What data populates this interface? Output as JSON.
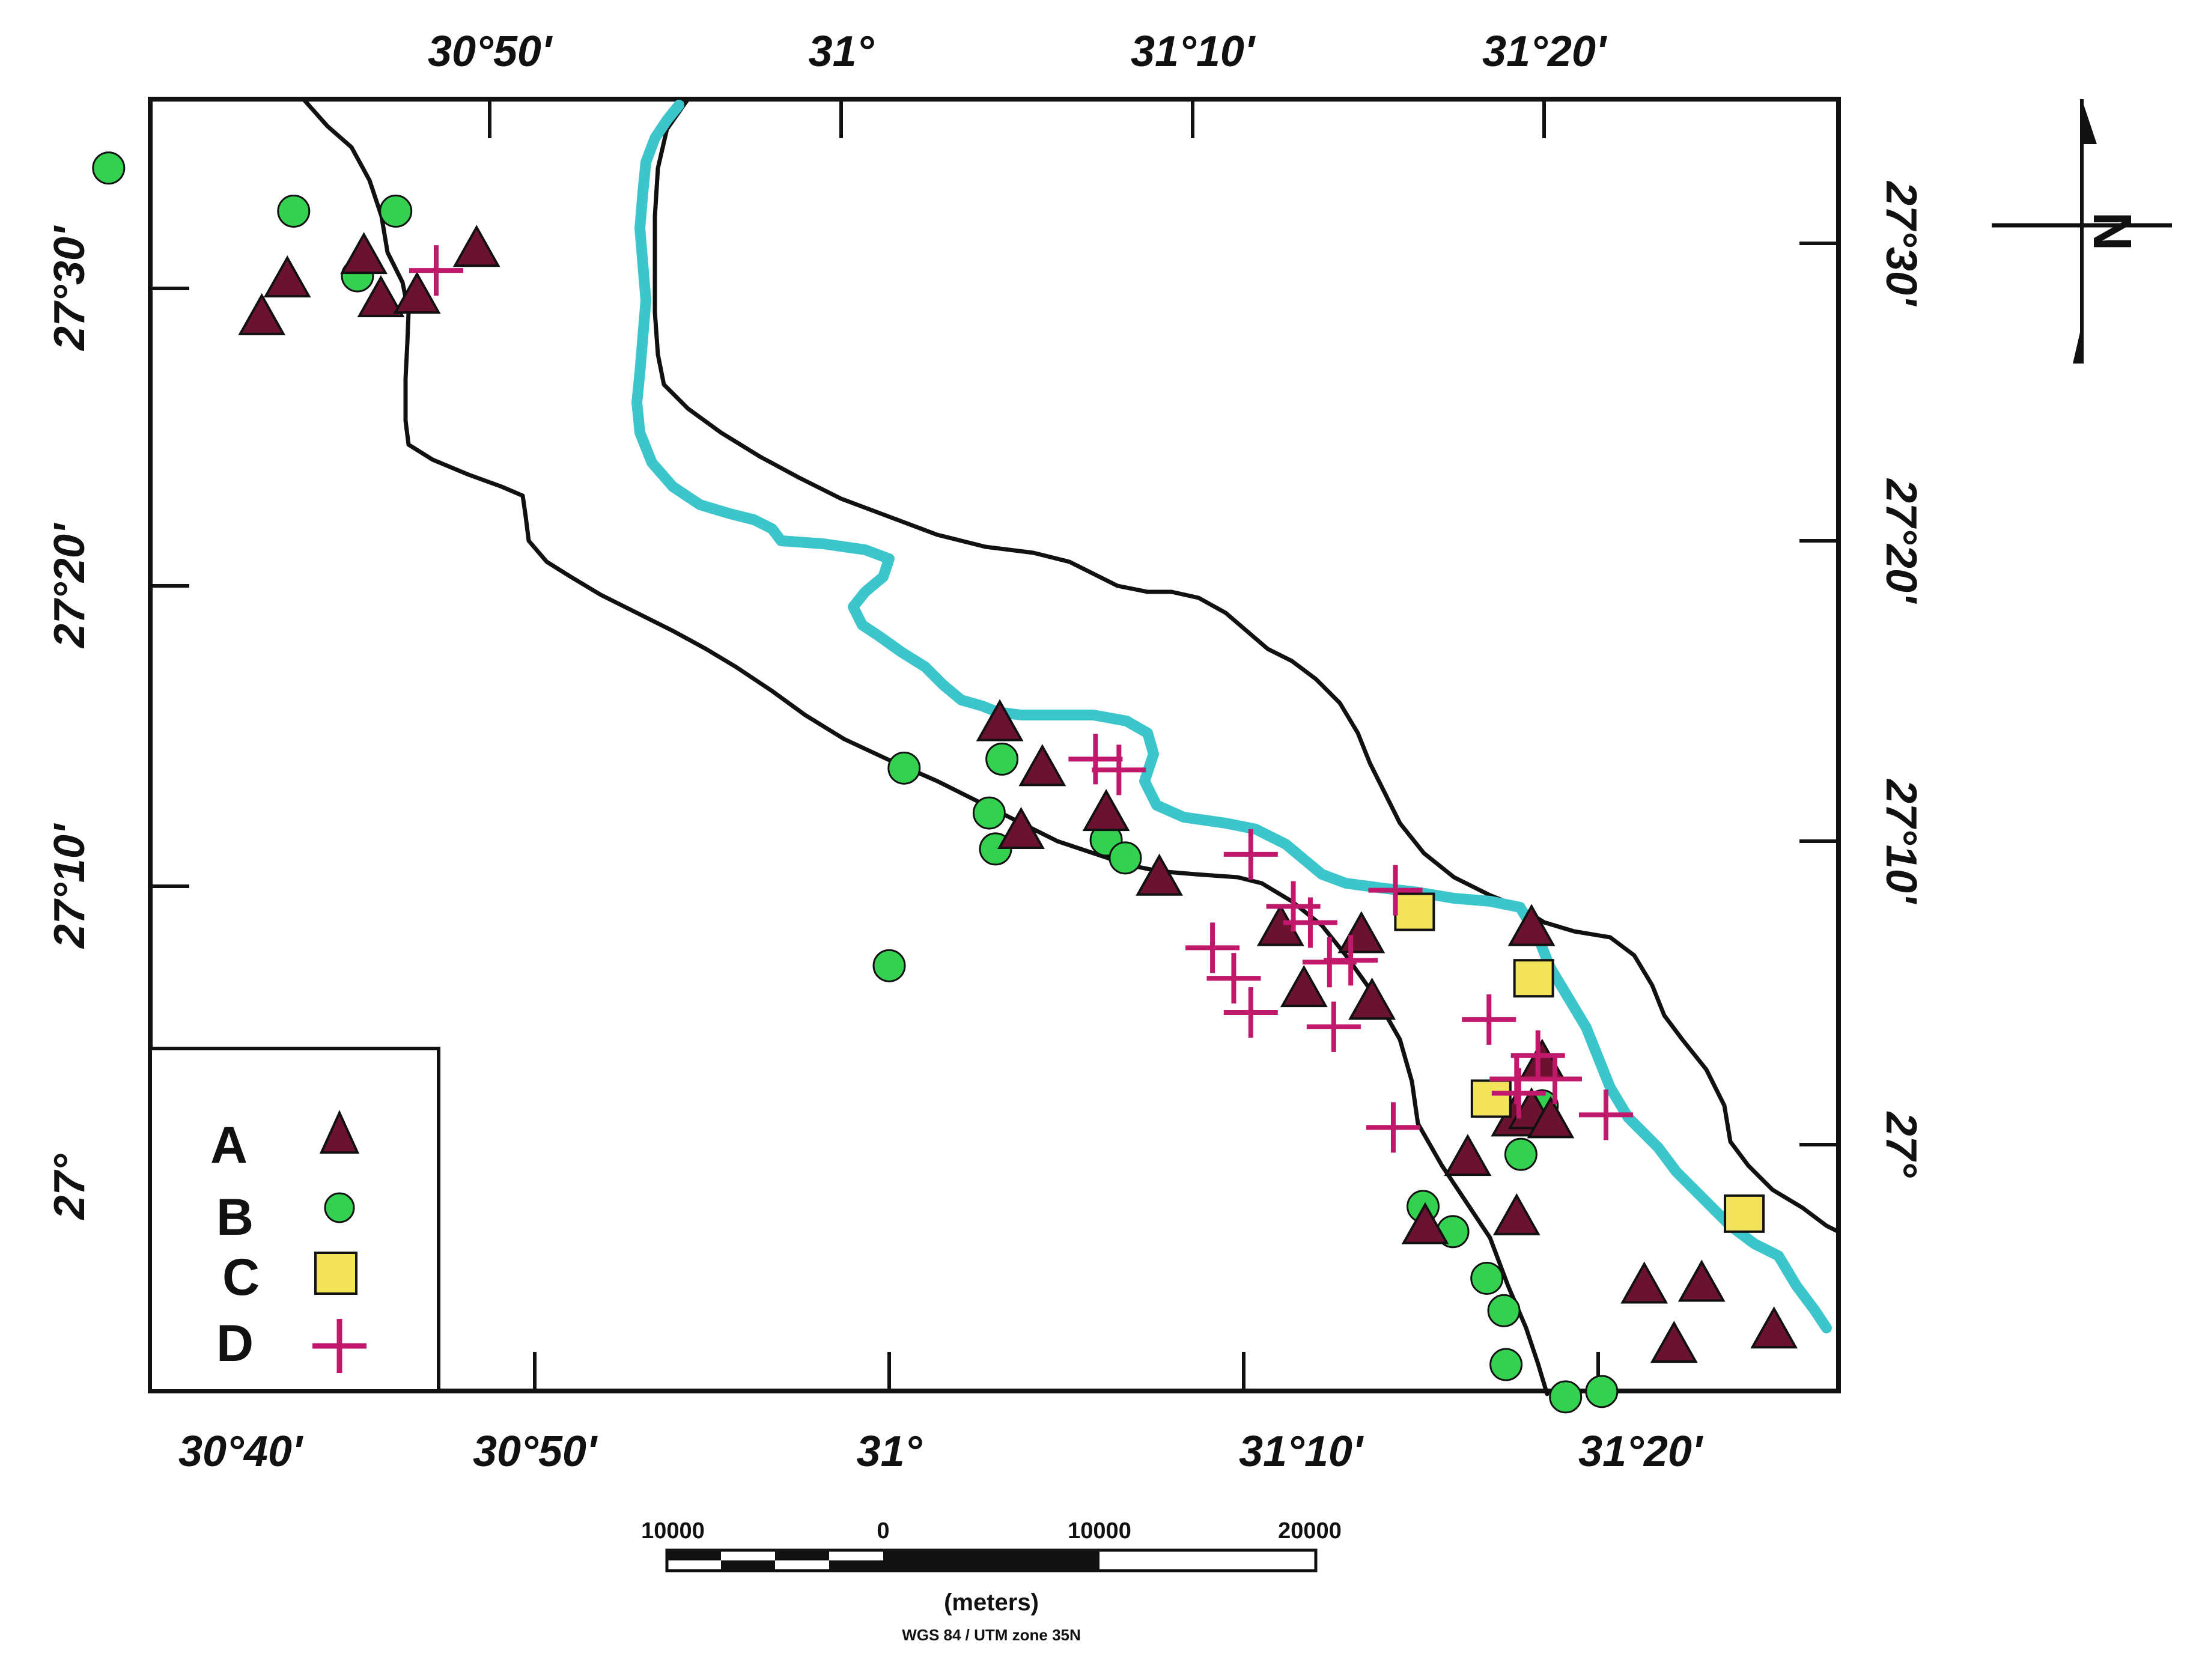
{
  "map": {
    "top_ticks": [
      "30°50'",
      "31°",
      "31°10'",
      "31°20'"
    ],
    "bottom_ticks": [
      "30°40'",
      "30°50'",
      "31°",
      "31°10'",
      "31°20'"
    ],
    "left_ticks": [
      "27°30'",
      "27°20'",
      "27°10'",
      "27°"
    ],
    "right_ticks": [
      "27°30'",
      "27°20'",
      "27°10'",
      "27°"
    ],
    "north_label": "N",
    "colors": {
      "river": "#3cc6cc",
      "boundary": "#111111",
      "triangle": "#6b1230",
      "circle": "#33d14f",
      "square": "#f2e35a",
      "plus": "#c0186a"
    }
  },
  "legend": {
    "items": [
      {
        "label": "A",
        "symbol": "triangle"
      },
      {
        "label": "B",
        "symbol": "circle"
      },
      {
        "label": "C",
        "symbol": "square"
      },
      {
        "label": "D",
        "symbol": "plus"
      }
    ]
  },
  "scale_bar": {
    "labels": [
      "10000",
      "0",
      "10000",
      "20000"
    ],
    "units": "(meters)",
    "projection": "WGS 84 / UTM zone 35N"
  },
  "sites": {
    "A": [
      [
        30.717,
        27.505
      ],
      [
        30.753,
        27.518
      ],
      [
        30.705,
        27.484
      ],
      [
        30.761,
        27.494
      ],
      [
        30.778,
        27.496
      ],
      [
        30.806,
        27.522
      ],
      [
        31.052,
        27.258
      ],
      [
        31.072,
        27.233
      ],
      [
        31.062,
        27.198
      ],
      [
        31.102,
        27.208
      ],
      [
        31.127,
        27.172
      ],
      [
        31.184,
        27.144
      ],
      [
        31.222,
        27.14
      ],
      [
        31.227,
        27.103
      ],
      [
        31.195,
        27.11
      ],
      [
        31.302,
        27.144
      ],
      [
        31.307,
        27.069
      ],
      [
        31.294,
        27.038
      ],
      [
        31.302,
        27.042
      ],
      [
        31.311,
        27.037
      ],
      [
        31.272,
        27.016
      ],
      [
        31.295,
        26.983
      ],
      [
        31.252,
        26.978
      ],
      [
        31.355,
        26.945
      ],
      [
        31.382,
        26.946
      ],
      [
        31.416,
        26.92
      ],
      [
        31.369,
        26.912
      ]
    ],
    "B": [
      [
        30.633,
        27.567
      ],
      [
        30.72,
        27.543
      ],
      [
        30.768,
        27.543
      ],
      [
        30.75,
        27.507
      ],
      [
        31.007,
        27.233
      ],
      [
        31.053,
        27.238
      ],
      [
        31.047,
        27.208
      ],
      [
        31.05,
        27.188
      ],
      [
        31.102,
        27.193
      ],
      [
        31.111,
        27.183
      ],
      [
        31.0,
        27.123
      ],
      [
        31.251,
        26.989
      ],
      [
        31.265,
        26.975
      ],
      [
        31.281,
        26.949
      ],
      [
        31.289,
        26.931
      ],
      [
        31.307,
        27.045
      ],
      [
        31.297,
        27.018
      ],
      [
        31.29,
        26.901
      ],
      [
        31.318,
        26.883
      ],
      [
        31.335,
        26.886
      ]
    ],
    "C": [
      [
        31.247,
        27.153
      ],
      [
        31.303,
        27.116
      ],
      [
        31.283,
        27.049
      ],
      [
        31.402,
        26.985
      ]
    ],
    "D": [
      [
        30.787,
        27.51
      ],
      [
        31.097,
        27.238
      ],
      [
        31.108,
        27.232
      ],
      [
        31.17,
        27.185
      ],
      [
        31.19,
        27.156
      ],
      [
        31.238,
        27.165
      ],
      [
        31.198,
        27.147
      ],
      [
        31.152,
        27.133
      ],
      [
        31.207,
        27.125
      ],
      [
        31.217,
        27.126
      ],
      [
        31.162,
        27.116
      ],
      [
        31.17,
        27.097
      ],
      [
        31.209,
        27.089
      ],
      [
        31.282,
        27.093
      ],
      [
        31.305,
        27.073
      ],
      [
        31.295,
        27.06
      ],
      [
        31.313,
        27.06
      ],
      [
        31.296,
        27.052
      ],
      [
        31.337,
        27.04
      ],
      [
        31.237,
        27.033
      ]
    ]
  }
}
